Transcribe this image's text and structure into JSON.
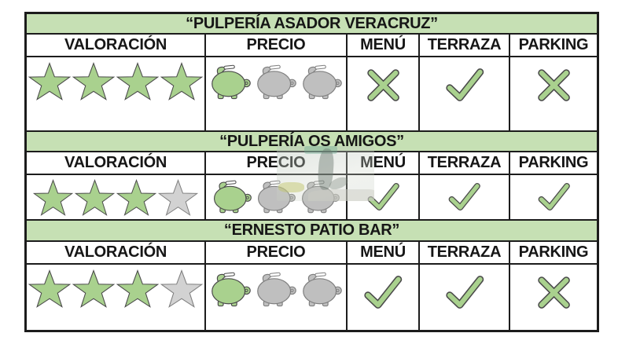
{
  "colors": {
    "band_green": "#c6e0b4",
    "icon_green": "#a9d18e",
    "icon_gray": "#d2d2d2",
    "pig_gray": "#bfbfbf",
    "edge_dark": "#4a4a4a",
    "edge_gray": "#7f7f7f",
    "mark_edge": "#4a4a4a",
    "border_dark": "#1c1c1c"
  },
  "columns": [
    "VALORACIÓN",
    "PRECIO",
    "MENÚ",
    "TERRAZA",
    "PARKING"
  ],
  "icons": {
    "rating": "star-icon",
    "price": "piggy-bank-icon",
    "yes": "check-icon",
    "no": "cross-icon"
  },
  "restaurants": [
    {
      "name": "“PULPERÍA ASADOR VERACRUZ”",
      "stars_filled": 4,
      "stars_total": 4,
      "pigs_filled": 1,
      "pigs_total": 3,
      "menu": false,
      "terraza": true,
      "parking": false
    },
    {
      "name": "“PULPERÍA OS AMIGOS”",
      "stars_filled": 3,
      "stars_total": 4,
      "pigs_filled": 1,
      "pigs_total": 3,
      "menu": true,
      "terraza": true,
      "parking": true
    },
    {
      "name": "“ERNESTO PATIO BAR”",
      "stars_filled": 3,
      "stars_total": 4,
      "pigs_filled": 1,
      "pigs_total": 3,
      "menu": true,
      "terraza": true,
      "parking": false
    }
  ]
}
